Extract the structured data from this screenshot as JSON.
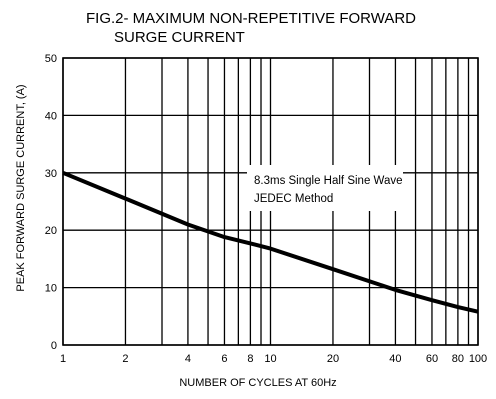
{
  "chart_data": {
    "type": "line",
    "title": "FIG.2- MAXIMUM NON-REPETITIVE FORWARD",
    "subtitle": "SURGE CURRENT",
    "xlabel": "NUMBER OF CYCLES AT 60Hz",
    "ylabel": "PEAK FORWARD SURGE CURRENT, (A)",
    "xscale": "log",
    "xlim": [
      1,
      100
    ],
    "ylim": [
      0,
      50
    ],
    "grid": true,
    "x_ticks": [
      1,
      2,
      4,
      6,
      8,
      10,
      20,
      40,
      60,
      80,
      100
    ],
    "x_tick_labels": [
      "1",
      "2",
      "4",
      "6",
      "8",
      "10",
      "20",
      "40",
      "60",
      "80",
      "100"
    ],
    "x_grid": [
      1,
      2,
      3,
      4,
      5,
      6,
      7,
      8,
      9,
      10,
      20,
      30,
      40,
      50,
      60,
      70,
      80,
      90,
      100
    ],
    "y_ticks": [
      0,
      10,
      20,
      30,
      40,
      50
    ],
    "y_tick_labels": [
      "0",
      "10",
      "20",
      "30",
      "40",
      "50"
    ],
    "annotations": [
      "8.3ms Single Half Sine Wave",
      "JEDEC Method"
    ],
    "series": [
      {
        "x": [
          1,
          2,
          4,
          6,
          8,
          10,
          20,
          40,
          60,
          80,
          100
        ],
        "y": [
          30,
          25.5,
          21,
          18.8,
          17.7,
          16.8,
          13.2,
          9.6,
          7.8,
          6.6,
          5.8
        ]
      }
    ],
    "colors": {
      "line": "#000000",
      "grid": "#000000",
      "background": "#ffffff"
    }
  }
}
